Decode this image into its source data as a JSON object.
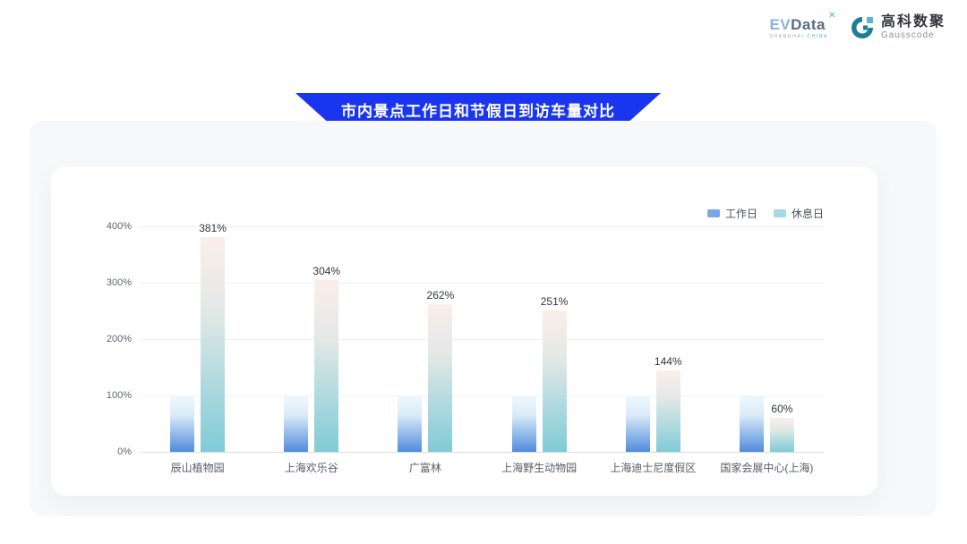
{
  "header": {
    "evdata": {
      "ev": "EV",
      "data": "Data",
      "mark": "✕",
      "sub_left": "SHANGHAI",
      "sub_right": "CHINA"
    },
    "gausscode": {
      "cn": "高科数聚",
      "en": "Gausscode",
      "icon_color": "#1e7e96",
      "icon_accent": "#5fb4cf"
    }
  },
  "banner": {
    "title": "市内景点工作日和节假日到访车量对比",
    "color": "#1a35f0"
  },
  "chart_data": {
    "type": "bar",
    "title": "市内景点工作日和节假日到访车量对比",
    "categories": [
      "辰山植物园",
      "上海欢乐谷",
      "广富林",
      "上海野生动物园",
      "上海迪士尼度假区",
      "国家会展中心(上海)"
    ],
    "series": [
      {
        "name": "工作日",
        "values": [
          100,
          100,
          100,
          100,
          100,
          100
        ],
        "show_labels": false,
        "legend_color": "#79a7e6",
        "gradient_top": "#f0f8fd",
        "gradient_mid": "#d9ebf8",
        "gradient_bottom": "#4f8bdc"
      },
      {
        "name": "休息日",
        "values": [
          381,
          304,
          262,
          251,
          144,
          60
        ],
        "show_labels": true,
        "legend_color": "#a5dbe4",
        "gradient_top": "#fbeeea",
        "gradient_mid": "#e2e8e6",
        "gradient_bottom": "#7fcbd7"
      }
    ],
    "data_labels": [
      "381%",
      "304%",
      "262%",
      "251%",
      "144%",
      "60%"
    ],
    "label_suffix": "%",
    "yticks": [
      0,
      100,
      200,
      300,
      400
    ],
    "ytick_labels": [
      "0%",
      "100%",
      "200%",
      "300%",
      "400%"
    ],
    "ylim": [
      0,
      400
    ],
    "grid": true,
    "legend_position": "top-right"
  }
}
